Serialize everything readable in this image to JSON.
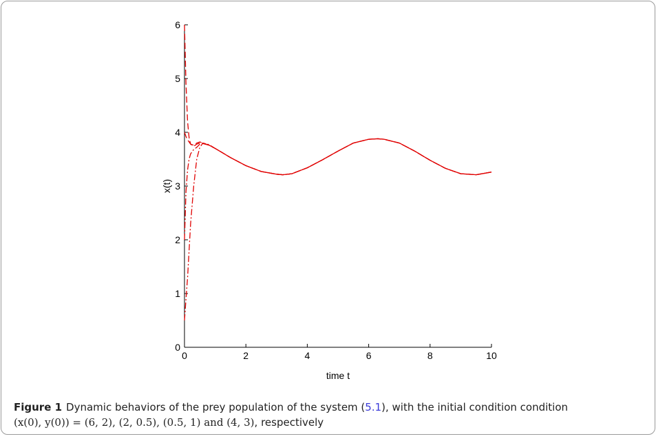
{
  "chart_data": {
    "type": "line",
    "xlabel": "time t",
    "ylabel": "x(t)",
    "xlim": [
      0,
      10
    ],
    "ylim": [
      0,
      6
    ],
    "xticks": [
      "0",
      "2",
      "4",
      "6",
      "8",
      "10"
    ],
    "yticks": [
      "0",
      "1",
      "2",
      "3",
      "4",
      "5",
      "6"
    ],
    "grid": false,
    "legend": "none",
    "line_color": "#e00000",
    "series": [
      {
        "style": "dashed",
        "x": [
          0,
          0.05,
          0.1,
          0.15,
          0.2,
          0.3,
          0.4,
          0.5,
          0.6,
          0.8,
          1.0,
          1.5,
          2.0,
          2.5,
          3.0,
          3.2,
          3.5,
          4.0,
          4.5,
          5.0,
          5.5,
          6.0,
          6.3,
          6.5,
          7.0,
          7.5,
          8.0,
          8.5,
          9.0,
          9.5,
          10.0
        ],
        "y": [
          6.0,
          4.9,
          4.2,
          3.9,
          3.78,
          3.76,
          3.8,
          3.82,
          3.8,
          3.76,
          3.7,
          3.53,
          3.38,
          3.27,
          3.22,
          3.21,
          3.23,
          3.34,
          3.49,
          3.65,
          3.8,
          3.87,
          3.88,
          3.87,
          3.8,
          3.65,
          3.48,
          3.33,
          3.23,
          3.21,
          3.26
        ]
      },
      {
        "style": "dashdot",
        "x": [
          0,
          0.05,
          0.1,
          0.15,
          0.2,
          0.3,
          0.4,
          0.5,
          0.6,
          0.8,
          1.0,
          1.5,
          2.0,
          2.5,
          3.0,
          3.2,
          3.5,
          4.0,
          4.5,
          5.0,
          5.5,
          6.0,
          6.3,
          6.5,
          7.0,
          7.5,
          8.0,
          8.5,
          9.0,
          9.5,
          10.0
        ],
        "y": [
          2.0,
          2.9,
          3.3,
          3.5,
          3.6,
          3.68,
          3.72,
          3.78,
          3.8,
          3.76,
          3.7,
          3.53,
          3.38,
          3.27,
          3.22,
          3.21,
          3.23,
          3.34,
          3.49,
          3.65,
          3.8,
          3.87,
          3.88,
          3.87,
          3.8,
          3.65,
          3.48,
          3.33,
          3.23,
          3.21,
          3.26
        ]
      },
      {
        "style": "dashdot",
        "x": [
          0,
          0.05,
          0.1,
          0.15,
          0.2,
          0.3,
          0.4,
          0.5,
          0.6,
          0.8,
          1.0,
          1.5,
          2.0,
          2.5,
          3.0,
          3.2,
          3.5,
          4.0,
          4.5,
          5.0,
          5.5,
          6.0,
          6.3,
          6.5,
          7.0,
          7.5,
          8.0,
          8.5,
          9.0,
          9.5,
          10.0
        ],
        "y": [
          0.5,
          0.9,
          1.3,
          1.8,
          2.3,
          3.0,
          3.5,
          3.72,
          3.8,
          3.77,
          3.7,
          3.53,
          3.38,
          3.27,
          3.22,
          3.21,
          3.23,
          3.34,
          3.49,
          3.65,
          3.8,
          3.87,
          3.88,
          3.87,
          3.8,
          3.65,
          3.48,
          3.33,
          3.23,
          3.21,
          3.26
        ]
      },
      {
        "style": "dashed",
        "x": [
          0,
          0.05,
          0.1,
          0.15,
          0.2,
          0.3,
          0.4,
          0.5,
          0.6,
          0.8,
          1.0,
          1.5,
          2.0,
          2.5,
          3.0,
          3.2,
          3.5,
          4.0,
          4.5,
          5.0,
          5.5,
          6.0,
          6.3,
          6.5,
          7.0,
          7.5,
          8.0,
          8.5,
          9.0,
          9.5,
          10.0
        ],
        "y": [
          4.0,
          3.92,
          3.86,
          3.82,
          3.78,
          3.74,
          3.78,
          3.8,
          3.79,
          3.76,
          3.7,
          3.53,
          3.38,
          3.27,
          3.22,
          3.21,
          3.23,
          3.34,
          3.49,
          3.65,
          3.8,
          3.87,
          3.88,
          3.87,
          3.8,
          3.65,
          3.48,
          3.33,
          3.23,
          3.21,
          3.26
        ]
      }
    ]
  },
  "caption": {
    "label": "Figure 1",
    "text_before_ref": "Dynamic behaviors of the prey population of the system (",
    "ref": "5.1",
    "text_after_ref": "), with the initial condition condition",
    "condition": "(x(0), y(0)) = (6, 2), (2, 0.5), (0.5, 1) and (4, 3)",
    "ending": ", respectively"
  }
}
